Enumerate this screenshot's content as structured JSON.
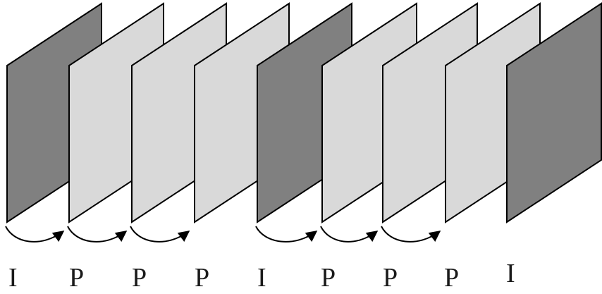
{
  "frames": [
    {
      "type": "I",
      "label": "I",
      "fill": "#808080"
    },
    {
      "type": "P",
      "label": "P",
      "fill": "#d9d9d9"
    },
    {
      "type": "P",
      "label": "P",
      "fill": "#d9d9d9"
    },
    {
      "type": "P",
      "label": "P",
      "fill": "#d9d9d9"
    },
    {
      "type": "I",
      "label": "I",
      "fill": "#808080"
    },
    {
      "type": "P",
      "label": "P",
      "fill": "#d9d9d9"
    },
    {
      "type": "P",
      "label": "P",
      "fill": "#d9d9d9"
    },
    {
      "type": "P",
      "label": "P",
      "fill": "#d9d9d9"
    },
    {
      "type": "I",
      "label": "I",
      "fill": "#808080"
    }
  ],
  "references": [
    {
      "from": 0,
      "to": 1
    },
    {
      "from": 1,
      "to": 2
    },
    {
      "from": 2,
      "to": 3
    },
    {
      "from": 4,
      "to": 5
    },
    {
      "from": 5,
      "to": 6
    },
    {
      "from": 6,
      "to": 7
    }
  ],
  "colors": {
    "stroke": "#000000",
    "i_frame": "#808080",
    "p_frame": "#d9d9d9"
  }
}
